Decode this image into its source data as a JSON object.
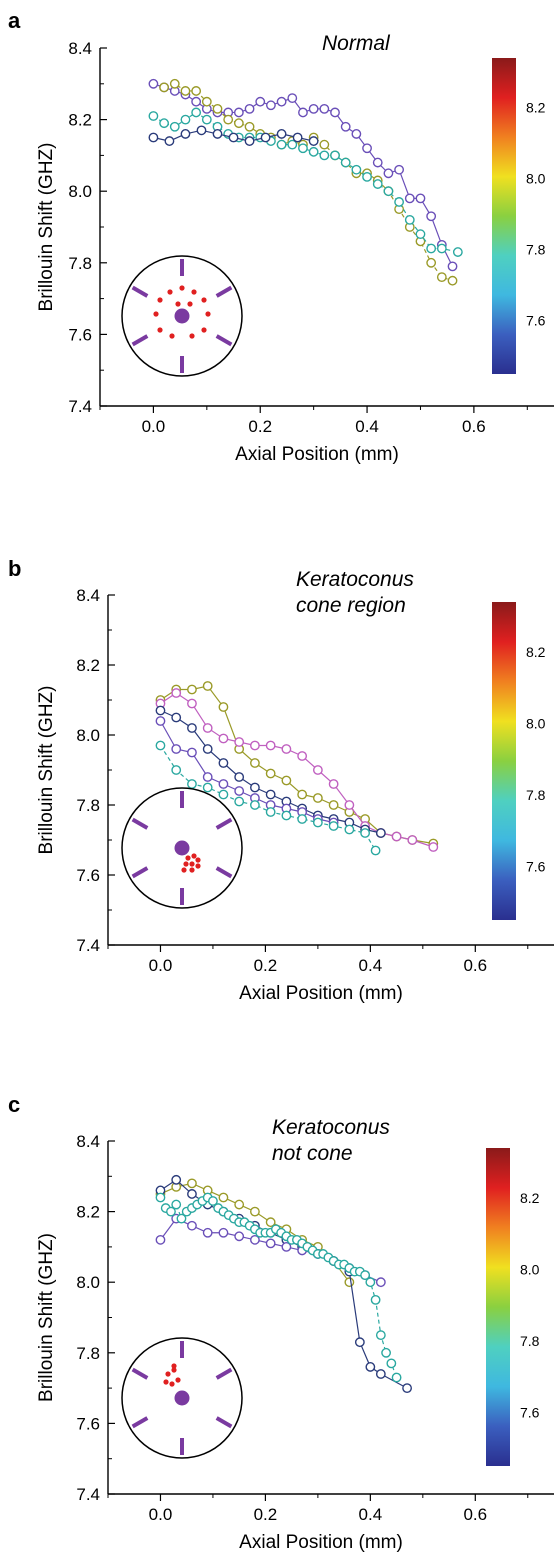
{
  "colors": {
    "purple": "#6a4fb8",
    "teal": "#2aa8a0",
    "olive": "#9a9a28",
    "navy": "#2a3b7a",
    "magenta": "#c060c0",
    "diagram_purple": "#7a3aa0",
    "diagram_red": "#e02020"
  },
  "colorbar": {
    "ticks": [
      "8.2",
      "8.0",
      "7.8",
      "7.6"
    ],
    "stops": [
      "#2a2f8f",
      "#3b5fbf",
      "#3fb8e0",
      "#4fd0c0",
      "#8ad040",
      "#f0e020",
      "#f08020",
      "#e02020",
      "#8a1a1a"
    ]
  },
  "chart_data": [
    {
      "type": "scatter",
      "panel_label": "a",
      "title": "Normal",
      "xlabel": "Axial Position (mm)",
      "ylabel": "Brillouin Shift (GHZ)",
      "xlim": [
        -0.1,
        0.75
      ],
      "ylim": [
        7.4,
        8.4
      ],
      "xticks": [
        "0.0",
        "0.2",
        "0.4",
        "0.6"
      ],
      "yticks": [
        "7.4",
        "7.6",
        "7.8",
        "8.0",
        "8.2",
        "8.4"
      ],
      "diagram": "a",
      "series": [
        {
          "color": "purple",
          "style": "solid",
          "x": [
            0.0,
            0.02,
            0.04,
            0.06,
            0.08,
            0.1,
            0.12,
            0.14,
            0.16,
            0.18,
            0.2,
            0.22,
            0.24,
            0.26,
            0.28,
            0.3,
            0.32,
            0.34,
            0.36,
            0.38,
            0.4,
            0.42,
            0.44,
            0.46,
            0.48,
            0.5,
            0.52,
            0.54,
            0.56
          ],
          "y": [
            8.3,
            8.29,
            8.28,
            8.27,
            8.25,
            8.23,
            8.22,
            8.22,
            8.22,
            8.23,
            8.25,
            8.24,
            8.25,
            8.26,
            8.22,
            8.23,
            8.23,
            8.22,
            8.18,
            8.16,
            8.12,
            8.08,
            8.05,
            8.06,
            7.98,
            7.98,
            7.93,
            7.85,
            7.79
          ]
        },
        {
          "color": "olive",
          "style": "dashed",
          "x": [
            0.02,
            0.04,
            0.06,
            0.08,
            0.1,
            0.12,
            0.14,
            0.16,
            0.18,
            0.2,
            0.22,
            0.24,
            0.26,
            0.28,
            0.3,
            0.32,
            0.34,
            0.36,
            0.38,
            0.4,
            0.42,
            0.44,
            0.46,
            0.48,
            0.5,
            0.52,
            0.54,
            0.56
          ],
          "y": [
            8.29,
            8.3,
            8.28,
            8.28,
            8.25,
            8.23,
            8.2,
            8.19,
            8.18,
            8.16,
            8.15,
            8.13,
            8.14,
            8.13,
            8.15,
            8.13,
            8.1,
            8.08,
            8.05,
            8.05,
            8.03,
            8.0,
            7.95,
            7.9,
            7.86,
            7.8,
            7.76,
            7.75
          ]
        },
        {
          "color": "teal",
          "style": "dashed",
          "x": [
            0.0,
            0.02,
            0.04,
            0.06,
            0.08,
            0.1,
            0.12,
            0.14,
            0.16,
            0.18,
            0.2,
            0.22,
            0.24,
            0.26,
            0.28,
            0.3,
            0.32,
            0.34,
            0.36,
            0.38,
            0.4,
            0.42,
            0.44,
            0.46,
            0.48,
            0.5,
            0.52,
            0.54,
            0.57
          ],
          "y": [
            8.21,
            8.19,
            8.18,
            8.2,
            8.22,
            8.2,
            8.18,
            8.16,
            8.15,
            8.15,
            8.15,
            8.14,
            8.13,
            8.13,
            8.12,
            8.11,
            8.1,
            8.1,
            8.08,
            8.06,
            8.04,
            8.02,
            8.0,
            7.97,
            7.92,
            7.88,
            7.84,
            7.84,
            7.83
          ]
        },
        {
          "color": "navy",
          "style": "solid",
          "x": [
            0.0,
            0.03,
            0.06,
            0.09,
            0.12,
            0.15,
            0.18,
            0.21,
            0.24,
            0.27,
            0.3
          ],
          "y": [
            8.15,
            8.14,
            8.16,
            8.17,
            8.16,
            8.15,
            8.14,
            8.15,
            8.16,
            8.15,
            8.14
          ]
        }
      ]
    },
    {
      "type": "scatter",
      "panel_label": "b",
      "title_lines": [
        "Keratoconus",
        "cone region"
      ],
      "xlabel": "Axial Position (mm)",
      "ylabel": "Brillouin Shift (GHZ)",
      "xlim": [
        -0.1,
        0.75
      ],
      "ylim": [
        7.4,
        8.4
      ],
      "xticks": [
        "0.0",
        "0.2",
        "0.4",
        "0.6"
      ],
      "yticks": [
        "7.4",
        "7.6",
        "7.8",
        "8.0",
        "8.2",
        "8.4"
      ],
      "diagram": "b",
      "series": [
        {
          "color": "olive",
          "style": "solid",
          "x": [
            0.0,
            0.03,
            0.06,
            0.09,
            0.12,
            0.15,
            0.18,
            0.21,
            0.24,
            0.27,
            0.3,
            0.33,
            0.36,
            0.39,
            0.42,
            0.45,
            0.48,
            0.52
          ],
          "y": [
            8.1,
            8.13,
            8.13,
            8.14,
            8.08,
            7.96,
            7.92,
            7.89,
            7.87,
            7.83,
            7.82,
            7.8,
            7.78,
            7.76,
            7.72,
            7.71,
            7.7,
            7.69
          ]
        },
        {
          "color": "magenta",
          "style": "solid",
          "x": [
            0.0,
            0.03,
            0.06,
            0.09,
            0.12,
            0.15,
            0.18,
            0.21,
            0.24,
            0.27,
            0.3,
            0.33,
            0.36,
            0.39,
            0.42,
            0.45,
            0.48,
            0.52
          ],
          "y": [
            8.09,
            8.12,
            8.09,
            8.02,
            7.99,
            7.98,
            7.97,
            7.97,
            7.96,
            7.94,
            7.9,
            7.86,
            7.8,
            7.74,
            7.72,
            7.71,
            7.7,
            7.68
          ]
        },
        {
          "color": "navy",
          "style": "solid",
          "x": [
            0.0,
            0.03,
            0.06,
            0.09,
            0.12,
            0.15,
            0.18,
            0.21,
            0.24,
            0.27,
            0.3,
            0.33,
            0.36,
            0.39,
            0.42
          ],
          "y": [
            8.07,
            8.05,
            8.02,
            7.96,
            7.92,
            7.88,
            7.85,
            7.83,
            7.81,
            7.79,
            7.77,
            7.76,
            7.75,
            7.73,
            7.72
          ]
        },
        {
          "color": "purple",
          "style": "solid",
          "x": [
            0.0,
            0.03,
            0.06,
            0.09,
            0.12,
            0.15,
            0.18,
            0.21,
            0.24,
            0.27,
            0.3,
            0.33
          ],
          "y": [
            8.04,
            7.96,
            7.95,
            7.88,
            7.86,
            7.84,
            7.82,
            7.8,
            7.79,
            7.78,
            7.76,
            7.75
          ]
        },
        {
          "color": "teal",
          "style": "dashed",
          "x": [
            0.0,
            0.03,
            0.06,
            0.09,
            0.12,
            0.15,
            0.18,
            0.21,
            0.24,
            0.27,
            0.3,
            0.33,
            0.36,
            0.39,
            0.41
          ],
          "y": [
            7.97,
            7.9,
            7.86,
            7.85,
            7.83,
            7.81,
            7.8,
            7.78,
            7.77,
            7.76,
            7.75,
            7.74,
            7.73,
            7.72,
            7.67
          ]
        }
      ]
    },
    {
      "type": "scatter",
      "panel_label": "c",
      "title_lines": [
        "Keratoconus",
        "not cone"
      ],
      "xlabel": "Axial Position (mm)",
      "ylabel": "Brillouin Shift (GHZ)",
      "xlim": [
        -0.1,
        0.75
      ],
      "ylim": [
        7.4,
        8.4
      ],
      "xticks": [
        "0.0",
        "0.2",
        "0.4",
        "0.6"
      ],
      "yticks": [
        "7.4",
        "7.6",
        "7.8",
        "8.0",
        "8.2",
        "8.4"
      ],
      "diagram": "c",
      "series": [
        {
          "color": "olive",
          "style": "solid",
          "x": [
            0.0,
            0.03,
            0.06,
            0.09,
            0.12,
            0.15,
            0.18,
            0.21,
            0.24,
            0.27,
            0.3,
            0.33,
            0.36
          ],
          "y": [
            8.25,
            8.27,
            8.28,
            8.26,
            8.24,
            8.22,
            8.2,
            8.17,
            8.15,
            8.12,
            8.1,
            8.06,
            8.0
          ]
        },
        {
          "color": "navy",
          "style": "solid",
          "x": [
            0.0,
            0.03,
            0.06,
            0.09,
            0.12,
            0.15,
            0.18,
            0.21,
            0.24,
            0.27,
            0.3,
            0.33,
            0.36,
            0.38,
            0.4,
            0.42,
            0.47
          ],
          "y": [
            8.26,
            8.29,
            8.25,
            8.22,
            8.2,
            8.18,
            8.16,
            8.14,
            8.12,
            8.1,
            8.08,
            8.06,
            8.03,
            7.83,
            7.76,
            7.74,
            7.7
          ]
        },
        {
          "color": "purple",
          "style": "solid",
          "x": [
            0.0,
            0.03,
            0.06,
            0.09,
            0.12,
            0.15,
            0.18,
            0.21,
            0.24,
            0.27,
            0.3,
            0.33,
            0.36,
            0.39,
            0.42
          ],
          "y": [
            8.12,
            8.18,
            8.16,
            8.14,
            8.14,
            8.13,
            8.12,
            8.11,
            8.1,
            8.09,
            8.08,
            8.06,
            8.04,
            8.02,
            8.0
          ]
        },
        {
          "color": "teal",
          "style": "dashed",
          "x": [
            0.0,
            0.01,
            0.02,
            0.03,
            0.04,
            0.05,
            0.06,
            0.07,
            0.08,
            0.09,
            0.1,
            0.11,
            0.12,
            0.13,
            0.14,
            0.15,
            0.16,
            0.17,
            0.18,
            0.19,
            0.2,
            0.21,
            0.22,
            0.23,
            0.24,
            0.25,
            0.26,
            0.27,
            0.28,
            0.29,
            0.3,
            0.31,
            0.32,
            0.33,
            0.34,
            0.35,
            0.36,
            0.37,
            0.38,
            0.39,
            0.4,
            0.41,
            0.42,
            0.43,
            0.44,
            0.45
          ],
          "y": [
            8.24,
            8.21,
            8.2,
            8.22,
            8.18,
            8.2,
            8.21,
            8.22,
            8.23,
            8.24,
            8.23,
            8.21,
            8.2,
            8.19,
            8.18,
            8.17,
            8.17,
            8.16,
            8.15,
            8.14,
            8.14,
            8.14,
            8.15,
            8.14,
            8.13,
            8.12,
            8.12,
            8.11,
            8.1,
            8.09,
            8.08,
            8.08,
            8.07,
            8.06,
            8.05,
            8.05,
            8.04,
            8.03,
            8.03,
            8.02,
            8.0,
            7.95,
            7.85,
            7.8,
            7.77,
            7.73
          ]
        }
      ]
    }
  ]
}
